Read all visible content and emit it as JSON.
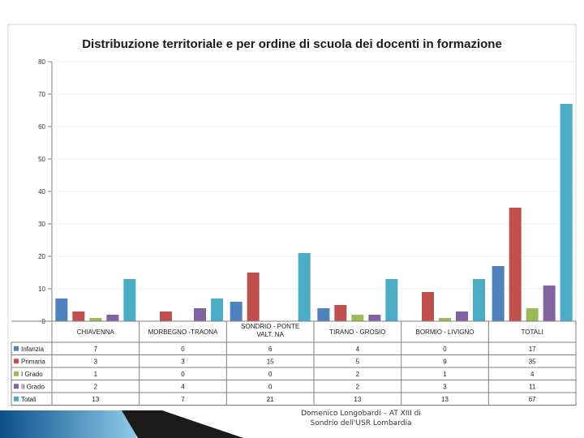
{
  "chart_data": {
    "type": "bar",
    "title": "Distribuzione territoriale e per ordine di scuola dei docenti in formazione",
    "categories": [
      "CHIAVENNA",
      "MORBEGNO -TRAONA",
      "SONDRIO - PONTE VALT. NA",
      "TIRANO - GROSIO",
      "BORMIO - LIVIGNO",
      "TOTALI"
    ],
    "category_lines": [
      [
        "CHIAVENNA"
      ],
      [
        "MORBEGNO -TRAONA"
      ],
      [
        "SONDRIO - PONTE",
        "VALT. NA"
      ],
      [
        "TIRANO - GROSIO"
      ],
      [
        "BORMIO - LIVIGNO"
      ],
      [
        "TOTALI"
      ]
    ],
    "series": [
      {
        "name": "Infanzia",
        "color": "#4F81BD",
        "values": [
          7,
          0,
          6,
          4,
          0,
          17
        ]
      },
      {
        "name": "Primaria",
        "color": "#C0504D",
        "values": [
          3,
          3,
          15,
          5,
          9,
          35
        ]
      },
      {
        "name": "I Grado",
        "color": "#9BBB59",
        "values": [
          1,
          0,
          0,
          2,
          1,
          4
        ]
      },
      {
        "name": "II Grado",
        "color": "#8064A2",
        "values": [
          2,
          4,
          0,
          2,
          3,
          11
        ]
      },
      {
        "name": "Totali",
        "color": "#4BACC6",
        "values": [
          13,
          7,
          21,
          13,
          13,
          67
        ]
      }
    ],
    "ylim": [
      0,
      80
    ],
    "yticks": [
      0,
      10,
      20,
      30,
      40,
      50,
      60,
      70,
      80
    ],
    "legend": "data-table"
  },
  "footer": {
    "line1": "Domenico Longobardi – AT XIII di",
    "line2": "Sondrio dell'USR Lombardia"
  },
  "accent_color": "#1F6FB2"
}
